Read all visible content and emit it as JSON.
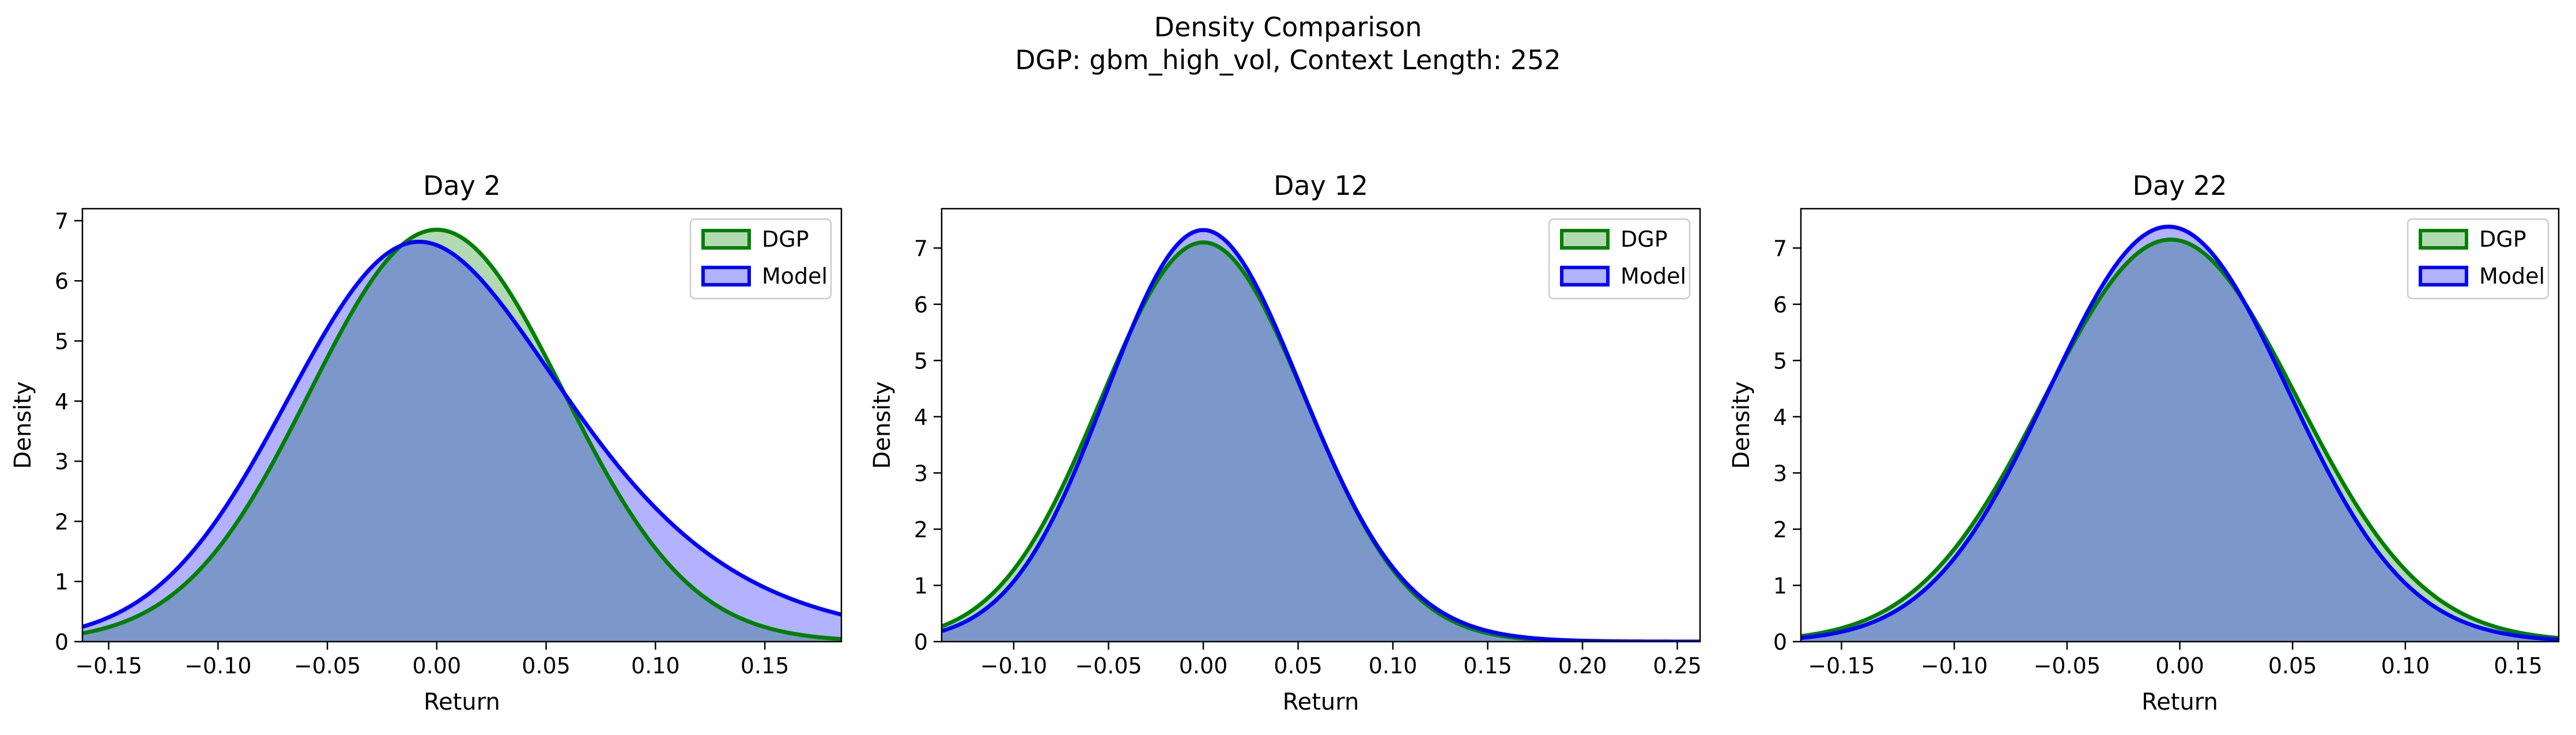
{
  "figure": {
    "suptitle_line1": "Density Comparison",
    "suptitle_line2": "DGP: gbm_high_vol, Context Length: 252"
  },
  "colors": {
    "dgp_line": "#008000",
    "dgp_fill": "#008000",
    "model_line": "#0000ff",
    "model_fill": "#0000ff",
    "overlap_fill": "#7f97c8"
  },
  "chart_data": [
    {
      "type": "area",
      "title": "Day 2",
      "xlabel": "Return",
      "ylabel": "Density",
      "xlim": [
        -0.162,
        0.185
      ],
      "ylim": [
        0,
        7.2
      ],
      "xticks": [
        -0.15,
        -0.1,
        -0.05,
        0.0,
        0.05,
        0.1,
        0.15
      ],
      "yticks": [
        0,
        1,
        2,
        3,
        4,
        5,
        6,
        7
      ],
      "grid": false,
      "legend": "upper right",
      "series": [
        {
          "name": "DGP",
          "mu": 0.0,
          "sigma": 0.058,
          "peak": 6.85
        },
        {
          "name": "Model",
          "mu": -0.008,
          "sigma": 0.06,
          "peak": 6.65,
          "tail_right": 0.12
        }
      ]
    },
    {
      "type": "area",
      "title": "Day 12",
      "xlabel": "Return",
      "ylabel": "Density",
      "xlim": [
        -0.138,
        0.262
      ],
      "ylim": [
        0,
        7.7
      ],
      "xticks": [
        -0.1,
        -0.05,
        0.0,
        0.05,
        0.1,
        0.15,
        0.2,
        0.25
      ],
      "yticks": [
        0,
        1,
        2,
        3,
        4,
        5,
        6,
        7
      ],
      "grid": false,
      "legend": "upper right",
      "series": [
        {
          "name": "DGP",
          "mu": 0.0,
          "sigma": 0.054,
          "peak": 7.1
        },
        {
          "name": "Model",
          "mu": 0.0,
          "sigma": 0.051,
          "peak": 7.32,
          "tail_right": 0.03
        }
      ]
    },
    {
      "type": "area",
      "title": "Day 22",
      "xlabel": "Return",
      "ylabel": "Density",
      "xlim": [
        -0.168,
        0.168
      ],
      "ylim": [
        0,
        7.7
      ],
      "xticks": [
        -0.15,
        -0.1,
        -0.05,
        0.0,
        0.05,
        0.1,
        0.15
      ],
      "yticks": [
        0,
        1,
        2,
        3,
        4,
        5,
        6,
        7
      ],
      "grid": false,
      "legend": "upper right",
      "series": [
        {
          "name": "DGP",
          "mu": -0.004,
          "sigma": 0.056,
          "peak": 7.15
        },
        {
          "name": "Model",
          "mu": -0.005,
          "sigma": 0.053,
          "peak": 7.38
        }
      ]
    }
  ]
}
